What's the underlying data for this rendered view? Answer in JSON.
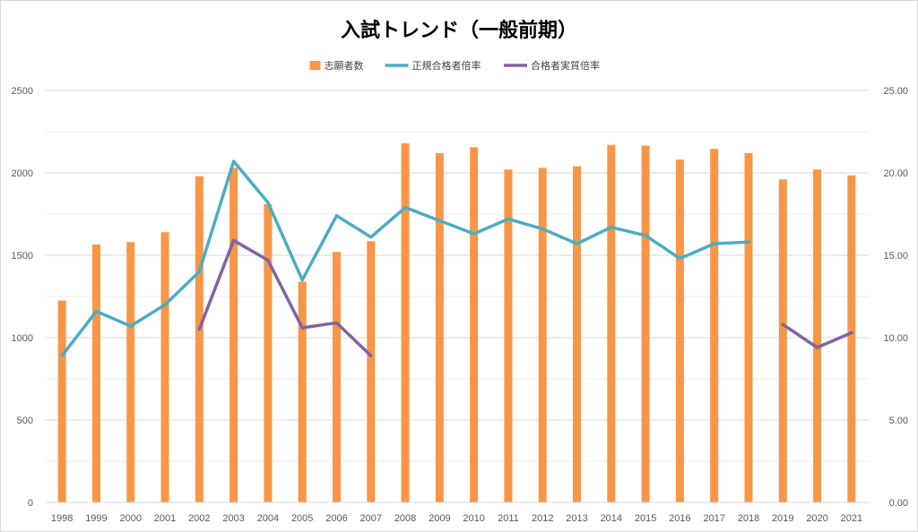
{
  "chart_data": {
    "type": "bar",
    "title": "入試トレンド（一般前期）",
    "categories": [
      "1998",
      "1999",
      "2000",
      "2001",
      "2002",
      "2003",
      "2004",
      "2005",
      "2006",
      "2007",
      "2008",
      "2009",
      "2010",
      "2011",
      "2012",
      "2013",
      "2014",
      "2015",
      "2016",
      "2017",
      "2018",
      "2019",
      "2020",
      "2021"
    ],
    "y_left": {
      "min": 0,
      "max": 2500,
      "ticks": [
        "0",
        "500",
        "1000",
        "1500",
        "2000",
        "2500"
      ]
    },
    "y_right": {
      "min": 0,
      "max": 25,
      "ticks": [
        "0.00",
        "5.00",
        "10.00",
        "15.00",
        "20.00",
        "25.00"
      ]
    },
    "legend_position": "top",
    "series": [
      {
        "name": "志願者数",
        "kind": "bar",
        "axis": "left",
        "color": "#f79646",
        "values": [
          1225,
          1565,
          1580,
          1640,
          1980,
          2030,
          1810,
          1340,
          1520,
          1585,
          2180,
          2120,
          2155,
          2020,
          2030,
          2040,
          2170,
          2165,
          2080,
          2145,
          2120,
          1960,
          2020,
          1985
        ]
      },
      {
        "name": "正規合格者倍率",
        "kind": "line",
        "axis": "right",
        "color": "#4bacc6",
        "values": [
          8.9,
          11.6,
          10.7,
          12.0,
          14.0,
          20.7,
          18.2,
          13.5,
          17.4,
          16.1,
          17.9,
          17.1,
          16.3,
          17.2,
          16.6,
          15.7,
          16.7,
          16.2,
          14.8,
          15.7,
          15.8,
          null,
          null,
          null
        ]
      },
      {
        "name": "合格者実質倍率",
        "kind": "line",
        "axis": "right",
        "color": "#8064a2",
        "values": [
          null,
          null,
          null,
          null,
          10.5,
          15.9,
          14.7,
          10.6,
          10.9,
          8.9,
          null,
          null,
          null,
          null,
          null,
          null,
          null,
          null,
          null,
          null,
          null,
          10.8,
          9.4,
          10.3
        ]
      }
    ]
  }
}
